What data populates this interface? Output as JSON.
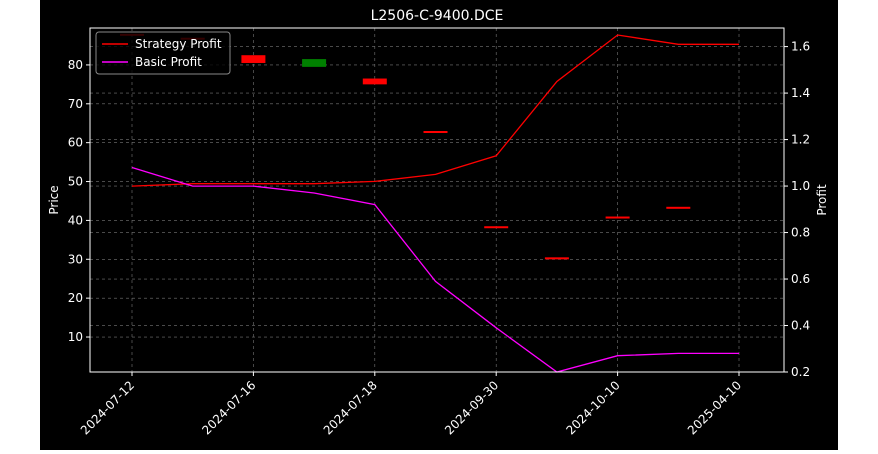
{
  "chart_data": {
    "type": "candlestick-line",
    "title": "L2506-C-9400.DCE",
    "ylabel_left": "Price",
    "ylabel_right": "Profit",
    "ylim_left": [
      1,
      89.5
    ],
    "ylim_right": [
      0.2,
      1.68
    ],
    "yticks_left": [
      10,
      20,
      30,
      40,
      50,
      60,
      70,
      80
    ],
    "yticks_right": [
      "0.2",
      "0.4",
      "0.6",
      "0.8",
      "1.0",
      "1.2",
      "1.4",
      "1.6"
    ],
    "grid": true,
    "legend_position": "upper-left",
    "x_ticks": [
      {
        "index": 0,
        "label": "2024-07-12"
      },
      {
        "index": 2,
        "label": "2024-07-16"
      },
      {
        "index": 4,
        "label": "2024-07-18"
      },
      {
        "index": 6,
        "label": "2024-09-30"
      },
      {
        "index": 8,
        "label": "2024-10-10"
      },
      {
        "index": 10,
        "label": "2025-04-10"
      }
    ],
    "candles": [
      {
        "i": 0,
        "open": 88.0,
        "close": 88.0,
        "color": "red"
      },
      {
        "i": 1,
        "open": 87.0,
        "close": 87.0,
        "color": "red"
      },
      {
        "i": 2,
        "open": 80.5,
        "close": 82.5,
        "color": "red"
      },
      {
        "i": 3,
        "open": 81.5,
        "close": 79.5,
        "color": "green"
      },
      {
        "i": 4,
        "open": 75.0,
        "close": 76.5,
        "color": "red"
      },
      {
        "i": 5,
        "open": 63.0,
        "close": 63.0,
        "color": "red"
      },
      {
        "i": 6,
        "open": 38.5,
        "close": 38.5,
        "color": "red"
      },
      {
        "i": 7,
        "open": 30.5,
        "close": 30.5,
        "color": "red"
      },
      {
        "i": 8,
        "open": 41.0,
        "close": 41.0,
        "color": "red"
      },
      {
        "i": 9,
        "open": 43.5,
        "close": 43.5,
        "color": "red"
      }
    ],
    "series": [
      {
        "name": "Strategy Profit",
        "color": "#ff0000",
        "x": [
          0,
          1,
          2,
          3,
          4,
          5,
          6,
          7,
          8,
          9,
          10
        ],
        "values": [
          1.0,
          1.01,
          1.01,
          1.01,
          1.02,
          1.05,
          1.13,
          1.45,
          1.65,
          1.61,
          1.61
        ]
      },
      {
        "name": "Basic Profit",
        "color": "#ff00ff",
        "x": [
          0,
          1,
          2,
          3,
          4,
          5,
          6,
          7,
          8,
          9,
          10
        ],
        "values": [
          1.08,
          1.0,
          1.0,
          0.97,
          0.92,
          0.59,
          0.39,
          0.2,
          0.27,
          0.28,
          0.28
        ]
      }
    ]
  }
}
